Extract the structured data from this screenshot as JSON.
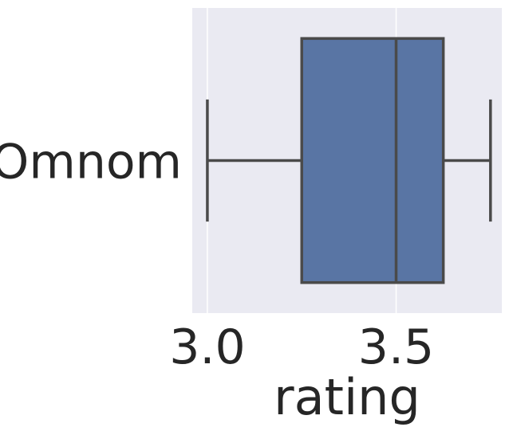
{
  "chart_data": {
    "type": "box",
    "orientation": "horizontal",
    "title": "",
    "xlabel": "rating",
    "ylabel": "",
    "xlim": [
      2.96,
      3.78
    ],
    "x_ticks": [
      {
        "value": 3.0,
        "label": "3.0"
      },
      {
        "value": 3.5,
        "label": "3.5"
      }
    ],
    "categories": [
      "Omnom"
    ],
    "boxes": [
      {
        "category": "Omnom",
        "min": 3.0,
        "q1": 3.25,
        "median": 3.5,
        "q3": 3.625,
        "max": 3.75
      }
    ],
    "grid": true,
    "colors": {
      "box_fill": "#5975a4",
      "line": "#4a4a4a",
      "plot_bg": "#eaeaf2",
      "grid": "#ffffff"
    }
  }
}
